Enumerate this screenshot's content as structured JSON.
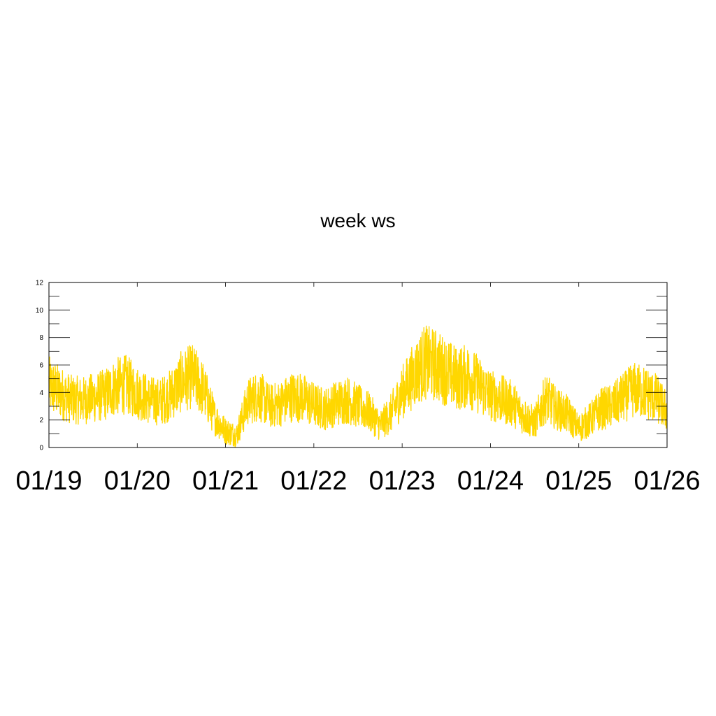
{
  "chart_data": {
    "type": "line",
    "title": "week ws",
    "xlabel": "",
    "ylabel": "",
    "ylim": [
      0,
      12
    ],
    "yticks": [
      0,
      2,
      4,
      6,
      8,
      10,
      12
    ],
    "xlim": [
      "01/19",
      "01/26"
    ],
    "xticks": [
      "01/19",
      "01/20",
      "01/21",
      "01/22",
      "01/23",
      "01/24",
      "01/25",
      "01/26"
    ],
    "grid": false,
    "legend": "none",
    "series": [
      {
        "color": "#FFD700",
        "x": [
          "01/19 00:00",
          "01/19 03:00",
          "01/19 06:00",
          "01/19 09:00",
          "01/19 12:00",
          "01/19 15:00",
          "01/19 18:00",
          "01/19 21:00",
          "01/20 00:00",
          "01/20 03:00",
          "01/20 06:00",
          "01/20 09:00",
          "01/20 12:00",
          "01/20 15:00",
          "01/20 18:00",
          "01/20 21:00",
          "01/21 00:00",
          "01/21 03:00",
          "01/21 06:00",
          "01/21 09:00",
          "01/21 12:00",
          "01/21 15:00",
          "01/21 18:00",
          "01/21 21:00",
          "01/22 00:00",
          "01/22 03:00",
          "01/22 06:00",
          "01/22 09:00",
          "01/22 12:00",
          "01/22 15:00",
          "01/22 18:00",
          "01/22 21:00",
          "01/23 00:00",
          "01/23 03:00",
          "01/23 06:00",
          "01/23 09:00",
          "01/23 12:00",
          "01/23 15:00",
          "01/23 18:00",
          "01/23 21:00",
          "01/24 00:00",
          "01/24 03:00",
          "01/24 06:00",
          "01/24 09:00",
          "01/24 12:00",
          "01/24 15:00",
          "01/24 18:00",
          "01/24 21:00",
          "01/25 00:00",
          "01/25 03:00",
          "01/25 06:00",
          "01/25 09:00",
          "01/25 12:00",
          "01/25 15:00",
          "01/25 18:00",
          "01/25 21:00",
          "01/26 00:00"
        ],
        "y": [
          4.5,
          4.0,
          3.5,
          3.4,
          3.6,
          3.8,
          4.4,
          4.6,
          4.0,
          3.5,
          3.3,
          3.8,
          4.8,
          5.2,
          4.2,
          2.2,
          1.2,
          0.9,
          3.3,
          3.8,
          3.0,
          3.2,
          3.7,
          3.6,
          3.1,
          2.8,
          3.2,
          3.5,
          3.0,
          2.6,
          1.6,
          2.5,
          4.0,
          5.2,
          6.2,
          6.0,
          5.5,
          5.0,
          5.2,
          4.5,
          3.8,
          3.5,
          3.2,
          2.3,
          1.8,
          3.6,
          2.8,
          2.4,
          1.4,
          2.0,
          2.8,
          3.0,
          3.6,
          4.2,
          4.0,
          3.6,
          2.6
        ]
      }
    ]
  }
}
